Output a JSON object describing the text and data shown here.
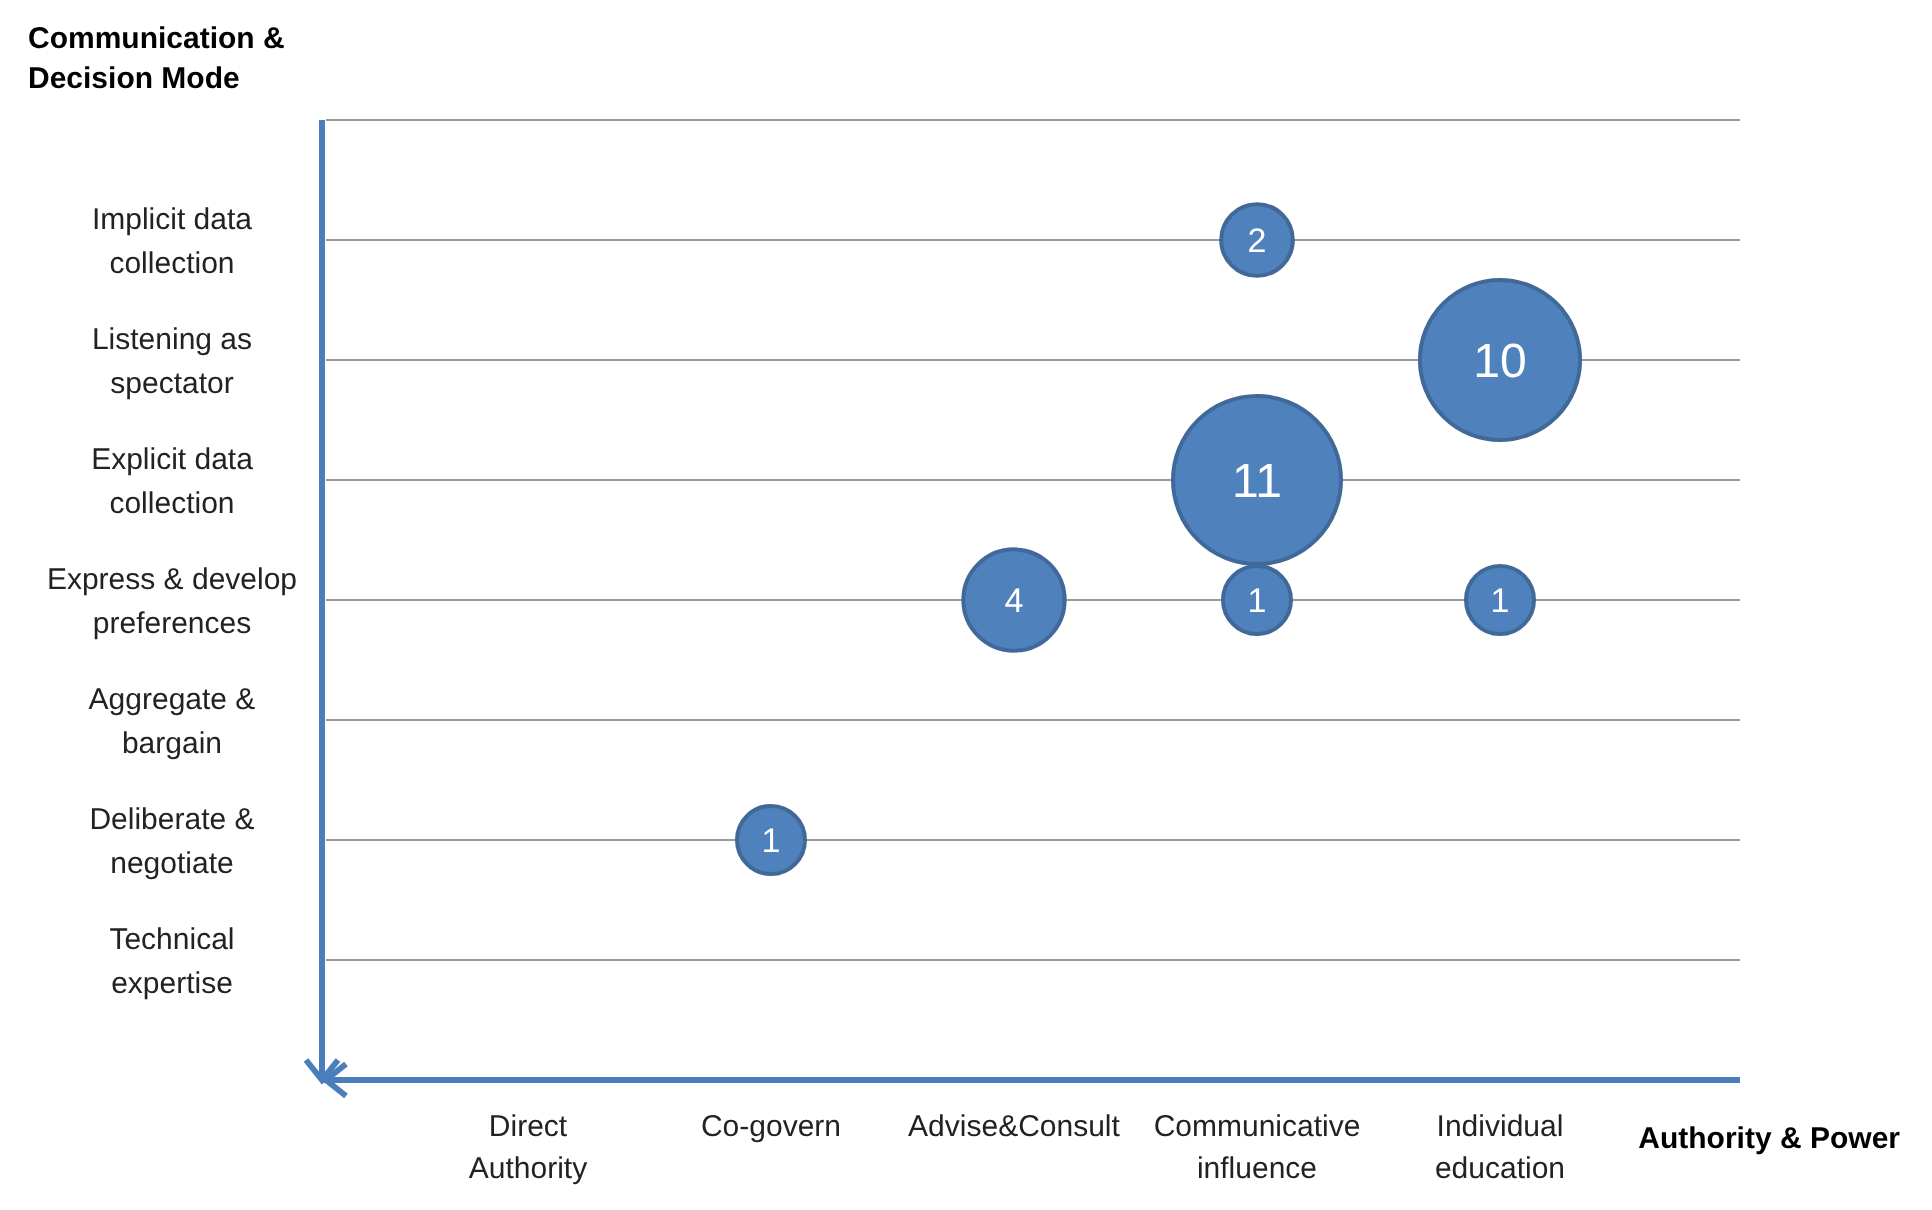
{
  "chart_data": {
    "type": "heatmap",
    "ylabel": "Communication & Decision Mode",
    "xlabel": "Authority & Power",
    "categories": [
      "Direct Authority",
      "Co-govern",
      "Advise&Consult",
      "Communicative influence",
      "Individual education"
    ],
    "y_categories": [
      "Implicit data collection",
      "Listening as spectator",
      "Explicit data collection",
      "Express & develop preferences",
      "Aggregate & bargain",
      "Deliberate & negotiate",
      "Technical expertise"
    ],
    "grid": "y",
    "color": "#4f81bd",
    "cells": [
      [
        null,
        null,
        null,
        2,
        null
      ],
      [
        null,
        null,
        null,
        null,
        10
      ],
      [
        null,
        null,
        null,
        11,
        null
      ],
      [
        null,
        null,
        4,
        1,
        1
      ],
      [
        null,
        null,
        null,
        null,
        null
      ],
      [
        null,
        1,
        null,
        null,
        null
      ],
      [
        null,
        null,
        null,
        null,
        null
      ]
    ],
    "cell_labels": [
      [
        null,
        null,
        null,
        "2",
        null
      ],
      [
        null,
        null,
        null,
        null,
        "10"
      ],
      [
        null,
        null,
        null,
        "11",
        null
      ],
      [
        null,
        null,
        "4",
        "1",
        "1"
      ],
      [
        null,
        null,
        null,
        null,
        null
      ],
      [
        null,
        "1",
        null,
        null,
        null
      ],
      [
        null,
        null,
        null,
        null,
        null
      ]
    ]
  }
}
